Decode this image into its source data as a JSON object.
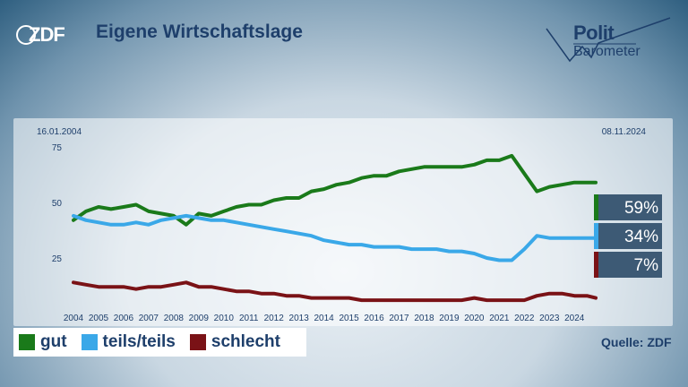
{
  "header": {
    "logo": "ZDF",
    "title": "Eigene Wirtschaftslage"
  },
  "brand": {
    "line1": "Polit",
    "line2": "Barometer"
  },
  "source": "Quelle: ZDF",
  "colors": {
    "gut": "#1a7a1a",
    "teils": "#3aa8e8",
    "schlecht": "#7a1216",
    "label_box": "#3d5a75"
  },
  "chart_data": {
    "type": "line",
    "title": "Eigene Wirtschaftslage",
    "date_start": "16.01.2004",
    "date_end": "08.11.2024",
    "xlabel": "",
    "ylabel": "",
    "x_ticks": [
      "2004",
      "2005",
      "2006",
      "2007",
      "2008",
      "2009",
      "2010",
      "2011",
      "2012",
      "2013",
      "2014",
      "2015",
      "2016",
      "2017",
      "2018",
      "2019",
      "2020",
      "2021",
      "2022",
      "2023",
      "2024"
    ],
    "ylim": [
      0,
      75
    ],
    "y_ticks": [
      25,
      50,
      75
    ],
    "x": [
      2004.0,
      2004.5,
      2005.0,
      2005.5,
      2006.0,
      2006.5,
      2007.0,
      2007.5,
      2008.0,
      2008.5,
      2009.0,
      2009.5,
      2010.0,
      2010.5,
      2011.0,
      2011.5,
      2012.0,
      2012.5,
      2013.0,
      2013.5,
      2014.0,
      2014.5,
      2015.0,
      2015.5,
      2016.0,
      2016.5,
      2017.0,
      2017.5,
      2018.0,
      2018.5,
      2019.0,
      2019.5,
      2020.0,
      2020.5,
      2021.0,
      2021.5,
      2022.0,
      2022.5,
      2023.0,
      2023.5,
      2024.0,
      2024.5,
      2024.85
    ],
    "series": [
      {
        "name": "gut",
        "color": "#1a7a1a",
        "final_label": "59%",
        "values": [
          42,
          46,
          48,
          47,
          48,
          49,
          46,
          45,
          44,
          40,
          45,
          44,
          46,
          48,
          49,
          49,
          51,
          52,
          52,
          55,
          56,
          58,
          59,
          61,
          62,
          62,
          64,
          65,
          66,
          66,
          66,
          66,
          67,
          69,
          69,
          71,
          63,
          55,
          57,
          58,
          59,
          59,
          59
        ]
      },
      {
        "name": "teils/teils",
        "color": "#3aa8e8",
        "final_label": "34%",
        "values": [
          44,
          42,
          41,
          40,
          40,
          41,
          40,
          42,
          43,
          44,
          43,
          42,
          42,
          41,
          40,
          39,
          38,
          37,
          36,
          35,
          33,
          32,
          31,
          31,
          30,
          30,
          30,
          29,
          29,
          29,
          28,
          28,
          27,
          25,
          24,
          24,
          29,
          35,
          34,
          34,
          34,
          34,
          34
        ]
      },
      {
        "name": "schlecht",
        "color": "#7a1216",
        "final_label": "7%",
        "values": [
          14,
          13,
          12,
          12,
          12,
          11,
          12,
          12,
          13,
          14,
          12,
          12,
          11,
          10,
          10,
          9,
          9,
          8,
          8,
          7,
          7,
          7,
          7,
          6,
          6,
          6,
          6,
          6,
          6,
          6,
          6,
          6,
          7,
          6,
          6,
          6,
          6,
          8,
          9,
          9,
          8,
          8,
          7
        ]
      }
    ],
    "grid": false,
    "legend_position": "bottom-left"
  }
}
